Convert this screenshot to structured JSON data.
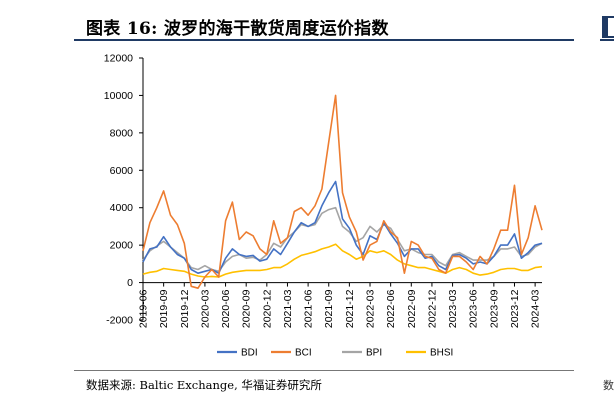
{
  "figure": {
    "title": "图表 16:  波罗的海干散货周度运价指数",
    "source": "数据来源:  Baltic Exchange, 华福证券研究所",
    "edge_fragment_source": "数"
  },
  "chart_data": {
    "type": "line",
    "title": "",
    "xlabel": "",
    "ylabel": "",
    "ylim": [
      -2000,
      12000
    ],
    "yticks": [
      -2000,
      0,
      2000,
      4000,
      6000,
      8000,
      10000,
      12000
    ],
    "ytick_labels": [
      "-2000",
      "0",
      "2000",
      "4000",
      "6000",
      "8000",
      "10000",
      "12000"
    ],
    "grid": false,
    "legend": "bottom",
    "xtick_labels": [
      "2019-06",
      "2019-09",
      "2019-12",
      "2020-03",
      "2020-06",
      "2020-09",
      "2020-12",
      "2021-03",
      "2021-06",
      "2021-09",
      "2021-12",
      "2022-03",
      "2022-06",
      "2022-09",
      "2022-12",
      "2023-03",
      "2023-06",
      "2023-09",
      "2023-12",
      "2024-03"
    ],
    "x": [
      "2019-06",
      "2019-07",
      "2019-08",
      "2019-09",
      "2019-10",
      "2019-11",
      "2019-12",
      "2020-01",
      "2020-02",
      "2020-03",
      "2020-04",
      "2020-05",
      "2020-06",
      "2020-07",
      "2020-08",
      "2020-09",
      "2020-10",
      "2020-11",
      "2020-12",
      "2021-01",
      "2021-02",
      "2021-03",
      "2021-04",
      "2021-05",
      "2021-06",
      "2021-07",
      "2021-08",
      "2021-09",
      "2021-10",
      "2021-11",
      "2021-12",
      "2022-01",
      "2022-02",
      "2022-03",
      "2022-04",
      "2022-05",
      "2022-06",
      "2022-07",
      "2022-08",
      "2022-09",
      "2022-10",
      "2022-11",
      "2022-12",
      "2023-01",
      "2023-02",
      "2023-03",
      "2023-04",
      "2023-05",
      "2023-06",
      "2023-07",
      "2023-08",
      "2023-09",
      "2023-10",
      "2023-11",
      "2023-12",
      "2024-01",
      "2024-02",
      "2024-03",
      "2024-04"
    ],
    "series": [
      {
        "name": "BDI",
        "color": "#4472c4",
        "values": [
          1100,
          1800,
          1900,
          2450,
          1900,
          1500,
          1300,
          700,
          500,
          600,
          700,
          500,
          1300,
          1800,
          1500,
          1400,
          1450,
          1150,
          1250,
          1800,
          1500,
          2100,
          2700,
          3200,
          3000,
          3200,
          4100,
          4800,
          5400,
          3400,
          2900,
          2000,
          1500,
          2500,
          2300,
          3200,
          2600,
          2100,
          1400,
          1800,
          1800,
          1300,
          1400,
          900,
          700,
          1450,
          1500,
          1300,
          1000,
          1100,
          1000,
          1400,
          2000,
          2000,
          2600,
          1300,
          1600,
          2000,
          2100
        ]
      },
      {
        "name": "BCI",
        "color": "#ed7d31",
        "values": [
          1700,
          3200,
          4000,
          4900,
          3600,
          3100,
          2100,
          -200,
          -300,
          300,
          700,
          300,
          3300,
          4300,
          2300,
          2700,
          2500,
          1800,
          1500,
          3300,
          2100,
          2400,
          3800,
          4000,
          3600,
          4100,
          5000,
          7500,
          10000,
          4800,
          3500,
          2700,
          1200,
          2000,
          2200,
          3300,
          2700,
          2400,
          500,
          2200,
          2000,
          1400,
          1300,
          700,
          500,
          1400,
          1400,
          1100,
          700,
          1400,
          1000,
          1800,
          2800,
          2800,
          5200,
          1500,
          2400,
          4100,
          2800
        ]
      },
      {
        "name": "BPI",
        "color": "#a5a5a5",
        "values": [
          1200,
          1700,
          1950,
          2200,
          1900,
          1600,
          1300,
          800,
          700,
          900,
          700,
          600,
          1100,
          1400,
          1500,
          1300,
          1350,
          1200,
          1500,
          2100,
          1900,
          2400,
          2700,
          3100,
          3000,
          3100,
          3700,
          3900,
          4000,
          3000,
          2700,
          2200,
          2400,
          3000,
          2700,
          3100,
          2900,
          2300,
          1700,
          1800,
          1600,
          1500,
          1500,
          1100,
          900,
          1500,
          1600,
          1400,
          1200,
          1200,
          1200,
          1400,
          1800,
          1800,
          1900,
          1400,
          1500,
          1900,
          2100
        ]
      },
      {
        "name": "BHSI",
        "color": "#ffc000",
        "values": [
          450,
          550,
          600,
          750,
          700,
          650,
          600,
          450,
          350,
          300,
          330,
          300,
          450,
          550,
          600,
          650,
          650,
          650,
          700,
          800,
          800,
          1000,
          1250,
          1450,
          1550,
          1650,
          1800,
          1900,
          2050,
          1700,
          1500,
          1250,
          1400,
          1700,
          1600,
          1700,
          1500,
          1200,
          1000,
          900,
          800,
          800,
          700,
          600,
          500,
          700,
          800,
          700,
          500,
          400,
          450,
          550,
          700,
          750,
          750,
          650,
          650,
          800,
          850
        ]
      }
    ]
  }
}
